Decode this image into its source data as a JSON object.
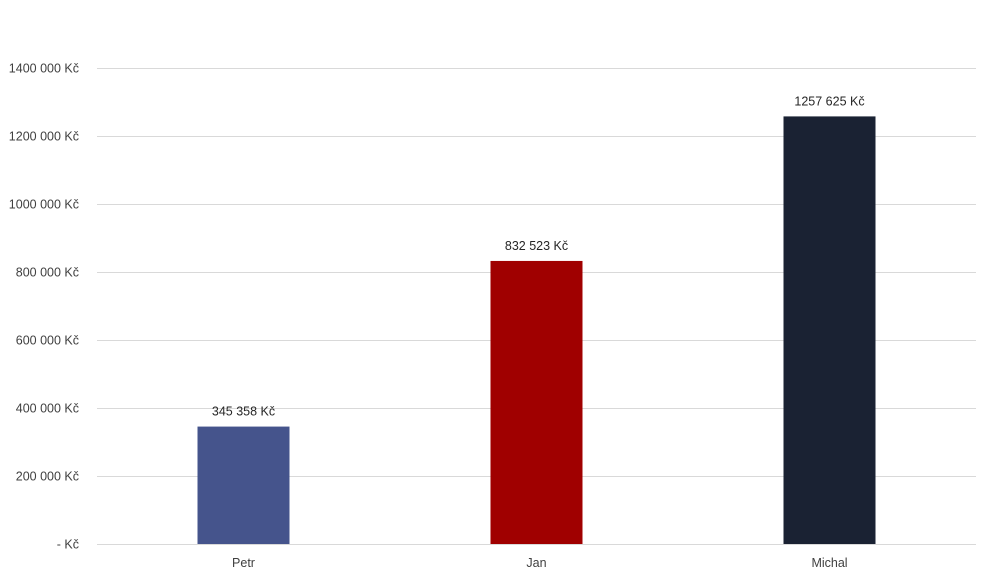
{
  "chart_data": {
    "type": "bar",
    "categories": [
      "Petr",
      "Jan",
      "Michal"
    ],
    "values": [
      345358,
      832523,
      1257625
    ],
    "data_labels": [
      "345 358 Kč",
      "832 523 Kč",
      "1257 625 Kč"
    ],
    "colors": [
      "#45548c",
      "#a00000",
      "#1a2233"
    ],
    "ylim": [
      0,
      1400000
    ],
    "y_ticks": [
      {
        "value": 0,
        "label": "-   Kč"
      },
      {
        "value": 200000,
        "label": "200 000 Kč"
      },
      {
        "value": 400000,
        "label": "400 000 Kč"
      },
      {
        "value": 600000,
        "label": "600 000 Kč"
      },
      {
        "value": 800000,
        "label": "800 000 Kč"
      },
      {
        "value": 1000000,
        "label": "1000 000 Kč"
      },
      {
        "value": 1200000,
        "label": "1200 000 Kč"
      },
      {
        "value": 1400000,
        "label": "1400 000 Kč"
      }
    ],
    "grid": true,
    "gridline_color": "#d9d9d9",
    "legend": "none"
  }
}
